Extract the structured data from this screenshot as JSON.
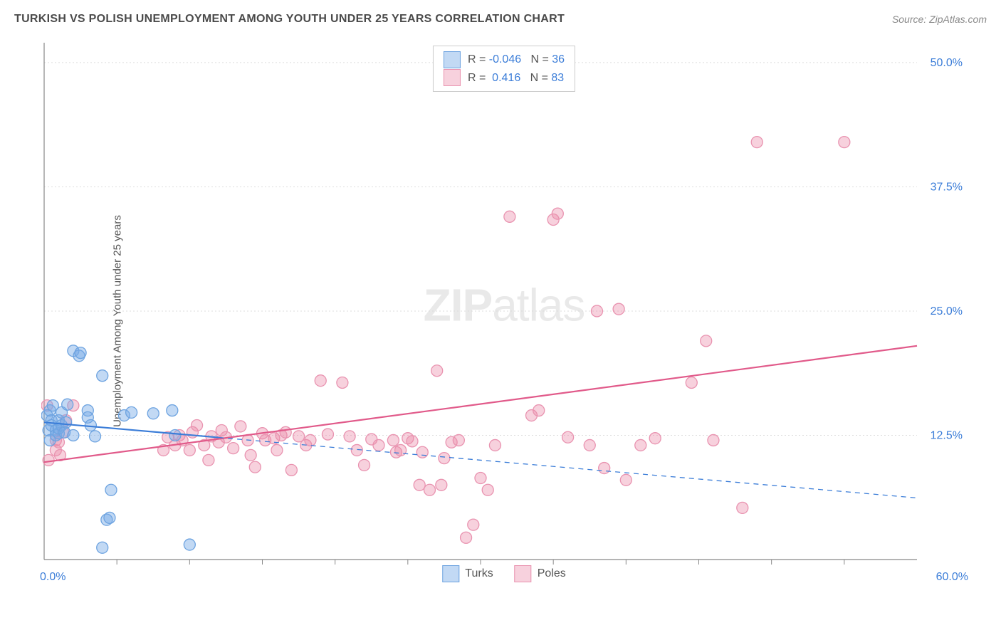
{
  "title": "TURKISH VS POLISH UNEMPLOYMENT AMONG YOUTH UNDER 25 YEARS CORRELATION CHART",
  "source": "Source: ZipAtlas.com",
  "ylabel": "Unemployment Among Youth under 25 years",
  "watermark_a": "ZIP",
  "watermark_b": "atlas",
  "xlim": [
    0,
    60
  ],
  "ylim": [
    0,
    52
  ],
  "x_origin_label": "0.0%",
  "x_max_label": "60.0%",
  "y_ticks": [
    12.5,
    25.0,
    37.5,
    50.0
  ],
  "y_tick_labels": [
    "12.5%",
    "25.0%",
    "37.5%",
    "50.0%"
  ],
  "x_minor_ticks": [
    5,
    10,
    15,
    20,
    25,
    30,
    35,
    40,
    45,
    50,
    55
  ],
  "series": {
    "turks": {
      "label": "Turks",
      "R": "-0.046",
      "N": "36",
      "fill": "rgba(120,170,230,0.45)",
      "stroke": "#6da3e0",
      "trend_color": "#3b7dd8",
      "trend_solid": [
        [
          0,
          13.8
        ],
        [
          60,
          6.2
        ]
      ],
      "trend_dash_only_after_x": 12,
      "points": [
        [
          0.2,
          14.5
        ],
        [
          0.3,
          13.0
        ],
        [
          0.4,
          12.0
        ],
        [
          0.4,
          15.0
        ],
        [
          0.5,
          14.0
        ],
        [
          0.5,
          13.5
        ],
        [
          0.6,
          15.5
        ],
        [
          0.8,
          13.0
        ],
        [
          0.8,
          12.5
        ],
        [
          1.0,
          12.7
        ],
        [
          1.0,
          13.2
        ],
        [
          1.0,
          14.0
        ],
        [
          1.2,
          14.8
        ],
        [
          1.2,
          13.5
        ],
        [
          1.4,
          12.8
        ],
        [
          1.5,
          13.8
        ],
        [
          1.6,
          15.6
        ],
        [
          2.0,
          12.5
        ],
        [
          2.0,
          21.0
        ],
        [
          2.4,
          20.5
        ],
        [
          2.5,
          20.8
        ],
        [
          3.0,
          15.0
        ],
        [
          3.0,
          14.3
        ],
        [
          3.2,
          13.5
        ],
        [
          3.5,
          12.4
        ],
        [
          4.0,
          18.5
        ],
        [
          4.0,
          1.2
        ],
        [
          4.3,
          4.0
        ],
        [
          4.5,
          4.2
        ],
        [
          4.6,
          7.0
        ],
        [
          5.5,
          14.5
        ],
        [
          6.0,
          14.8
        ],
        [
          7.5,
          14.7
        ],
        [
          8.8,
          15.0
        ],
        [
          9.0,
          12.5
        ],
        [
          10.0,
          1.5
        ]
      ]
    },
    "poles": {
      "label": "Poles",
      "R": "0.416",
      "N": "83",
      "fill": "rgba(235,140,170,0.40)",
      "stroke": "#e993b0",
      "trend_color": "#e15a8a",
      "trend_solid": [
        [
          0,
          9.8
        ],
        [
          60,
          21.5
        ]
      ],
      "points": [
        [
          0.2,
          15.5
        ],
        [
          0.3,
          10.0
        ],
        [
          0.8,
          12.0
        ],
        [
          0.8,
          11.0
        ],
        [
          1.0,
          11.8
        ],
        [
          1.1,
          10.5
        ],
        [
          1.3,
          12.8
        ],
        [
          1.5,
          14.0
        ],
        [
          2.0,
          15.5
        ],
        [
          8.2,
          11.0
        ],
        [
          8.5,
          12.3
        ],
        [
          9.0,
          11.5
        ],
        [
          9.3,
          12.5
        ],
        [
          9.5,
          12.0
        ],
        [
          10.0,
          11.0
        ],
        [
          10.2,
          12.8
        ],
        [
          10.5,
          13.5
        ],
        [
          11.0,
          11.5
        ],
        [
          11.3,
          10.0
        ],
        [
          11.5,
          12.4
        ],
        [
          12.0,
          11.8
        ],
        [
          12.2,
          13.0
        ],
        [
          12.5,
          12.3
        ],
        [
          13.0,
          11.2
        ],
        [
          13.5,
          13.4
        ],
        [
          14.0,
          12.0
        ],
        [
          14.2,
          10.5
        ],
        [
          14.5,
          9.3
        ],
        [
          15.0,
          12.7
        ],
        [
          15.2,
          12.0
        ],
        [
          15.8,
          12.2
        ],
        [
          16.0,
          11.0
        ],
        [
          16.3,
          12.5
        ],
        [
          16.6,
          12.8
        ],
        [
          17.0,
          9.0
        ],
        [
          17.5,
          12.4
        ],
        [
          18.0,
          11.5
        ],
        [
          18.3,
          12.0
        ],
        [
          19.0,
          18.0
        ],
        [
          19.5,
          12.6
        ],
        [
          20.5,
          17.8
        ],
        [
          21.0,
          12.4
        ],
        [
          21.5,
          11.0
        ],
        [
          22.0,
          9.5
        ],
        [
          22.5,
          12.1
        ],
        [
          23.0,
          11.5
        ],
        [
          24.0,
          12.0
        ],
        [
          24.2,
          10.8
        ],
        [
          24.5,
          11.0
        ],
        [
          25.0,
          12.2
        ],
        [
          25.3,
          11.9
        ],
        [
          25.8,
          7.5
        ],
        [
          26.0,
          10.8
        ],
        [
          26.5,
          7.0
        ],
        [
          27.0,
          19.0
        ],
        [
          27.3,
          7.5
        ],
        [
          27.5,
          10.2
        ],
        [
          28.0,
          11.8
        ],
        [
          28.5,
          12.0
        ],
        [
          29.0,
          2.2
        ],
        [
          29.5,
          3.5
        ],
        [
          30.0,
          8.2
        ],
        [
          30.5,
          7.0
        ],
        [
          31.0,
          11.5
        ],
        [
          32.0,
          34.5
        ],
        [
          33.5,
          14.5
        ],
        [
          34.0,
          15.0
        ],
        [
          35.0,
          34.2
        ],
        [
          35.3,
          34.8
        ],
        [
          36.0,
          12.3
        ],
        [
          37.5,
          11.5
        ],
        [
          38.0,
          25.0
        ],
        [
          38.5,
          9.2
        ],
        [
          39.5,
          25.2
        ],
        [
          40.0,
          8.0
        ],
        [
          41.0,
          11.5
        ],
        [
          42.0,
          12.2
        ],
        [
          44.5,
          17.8
        ],
        [
          45.5,
          22.0
        ],
        [
          46.0,
          12.0
        ],
        [
          48.0,
          5.2
        ],
        [
          49.0,
          42.0
        ],
        [
          55.0,
          42.0
        ]
      ]
    }
  },
  "legend_r_label": "R =",
  "legend_n_label": "N =",
  "background_color": "#ffffff",
  "grid_color": "#dddddd",
  "axis_color": "#888888",
  "marker_radius": 8,
  "trend_width": 2.2
}
